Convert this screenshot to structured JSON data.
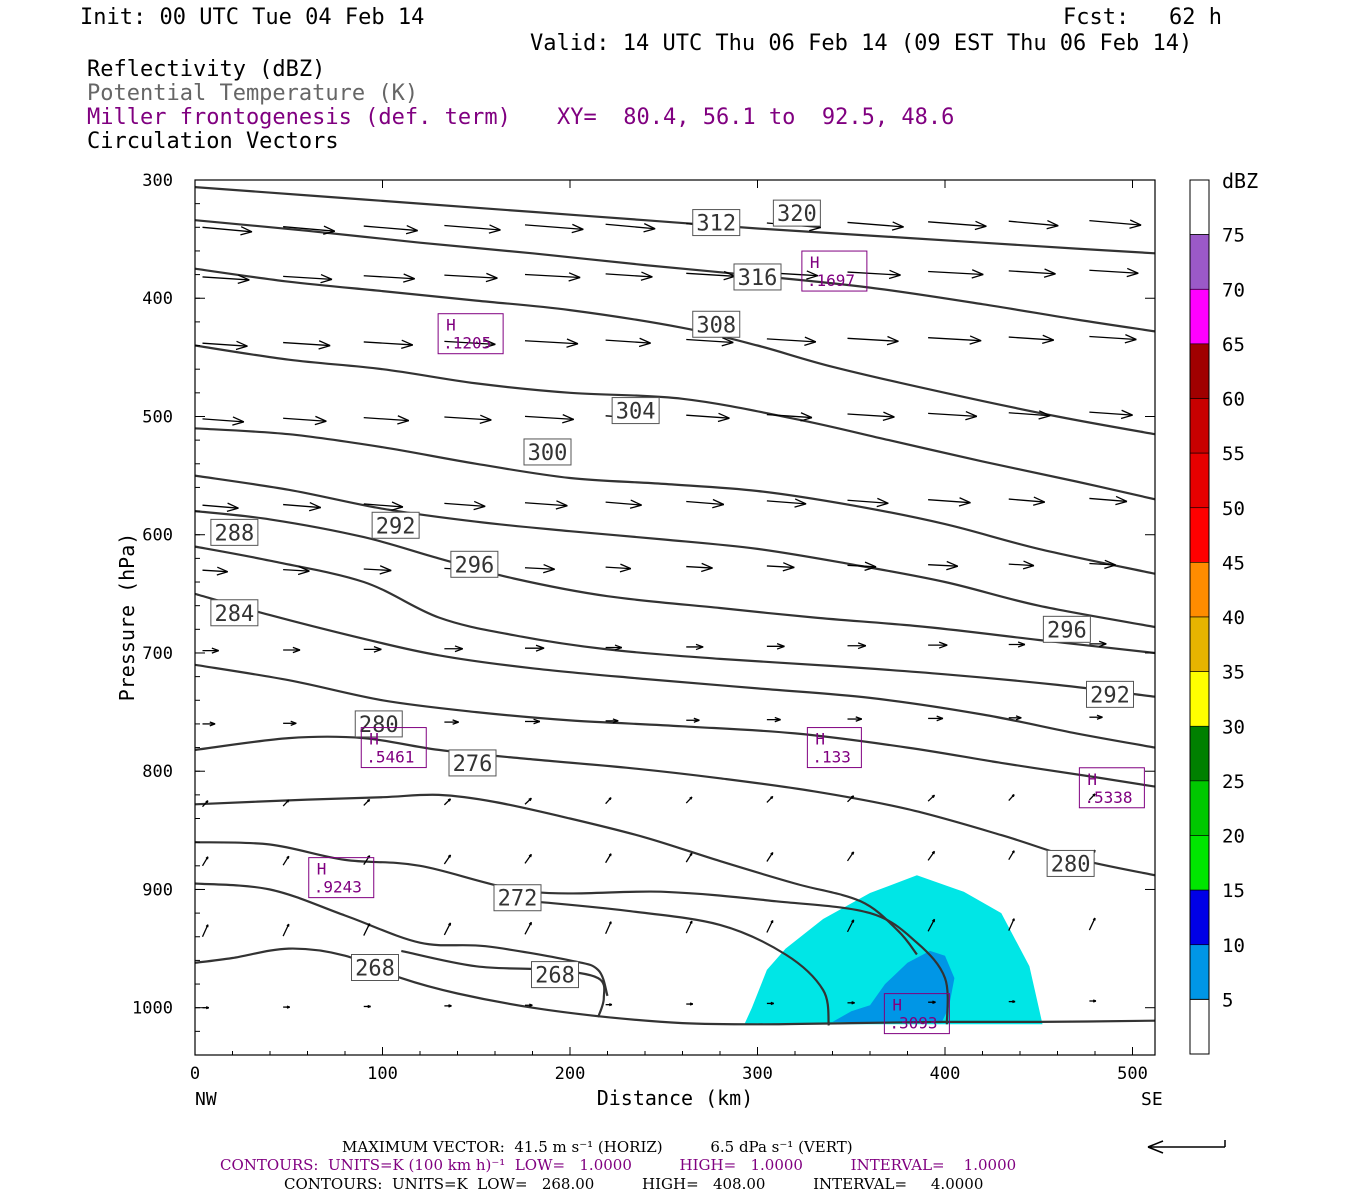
{
  "header": {
    "init": "Init: 00 UTC Tue 04 Feb 14",
    "fcst": "Fcst:   62 h",
    "valid": "Valid: 14 UTC Thu 06 Feb 14 (09 EST Thu 06 Feb 14)",
    "field1": "Reflectivity (dBZ)",
    "field2": "Potential Temperature (K)",
    "field3": "Miller frontogenesis (def. term)",
    "xy": "XY=  80.4, 56.1 to  92.5, 48.6",
    "field4": "Circulation Vectors"
  },
  "footer": {
    "max_vector": "MAXIMUM VECTOR:  41.5 m s⁻¹ (HORIZ)          6.5 dPa s⁻¹ (VERT)",
    "contours1": "CONTOURS:  UNITS=K (100 km h)⁻¹  LOW=   1.0000          HIGH=   1.0000          INTERVAL=    1.0000",
    "contours2": "CONTOURS:  UNITS=K  LOW=   268.00          HIGH=   408.00          INTERVAL=     4.0000"
  },
  "chart_data": {
    "type": "cross-section",
    "xlabel": "Distance (km)",
    "ylabel": "Pressure (hPa)",
    "xlim": [
      0,
      512
    ],
    "ylim": [
      1040,
      300
    ],
    "x_ticks": [
      0,
      100,
      200,
      300,
      400,
      500
    ],
    "y_ticks": [
      300,
      400,
      500,
      600,
      700,
      800,
      900,
      1000
    ],
    "x_end_labels": {
      "left": "NW",
      "right": "SE"
    },
    "colorbar": {
      "title": "dBZ",
      "levels": [
        {
          "label": "5",
          "color": "#00e6e6"
        },
        {
          "label": "10",
          "color": "#0096e6"
        },
        {
          "label": "15",
          "color": "#0000e6"
        },
        {
          "label": "20",
          "color": "#00e600"
        },
        {
          "label": "25",
          "color": "#00c800"
        },
        {
          "label": "30",
          "color": "#008000"
        },
        {
          "label": "35",
          "color": "#ffff00"
        },
        {
          "label": "40",
          "color": "#e6b400"
        },
        {
          "label": "45",
          "color": "#ff8c00"
        },
        {
          "label": "50",
          "color": "#ff0000"
        },
        {
          "label": "55",
          "color": "#e60000"
        },
        {
          "label": "60",
          "color": "#c80000"
        },
        {
          "label": "65",
          "color": "#a00000"
        },
        {
          "label": "70",
          "color": "#ff00ff"
        },
        {
          "label": "75",
          "color": "#9b59c8"
        }
      ]
    },
    "reflectivity": [
      {
        "level": 5,
        "color": "#00e6e6",
        "points": [
          [
            293,
            1014
          ],
          [
            297,
            1000
          ],
          [
            305,
            968
          ],
          [
            315,
            950
          ],
          [
            335,
            925
          ],
          [
            360,
            903
          ],
          [
            385,
            888
          ],
          [
            410,
            902
          ],
          [
            430,
            920
          ],
          [
            445,
            965
          ],
          [
            450,
            1000
          ],
          [
            452,
            1014
          ]
        ]
      },
      {
        "level": 10,
        "color": "#0096e6",
        "points": [
          [
            340,
            1012
          ],
          [
            350,
            1003
          ],
          [
            360,
            998
          ],
          [
            368,
            980
          ],
          [
            380,
            962
          ],
          [
            392,
            952
          ],
          [
            400,
            956
          ],
          [
            405,
            975
          ],
          [
            402,
            1000
          ],
          [
            398,
            1013
          ]
        ]
      }
    ],
    "theta_contours": [
      {
        "value": 268,
        "points": [
          [
            0,
            962
          ],
          [
            20,
            958
          ],
          [
            50,
            950
          ],
          [
            80,
            956
          ],
          [
            110,
            975
          ],
          [
            140,
            988
          ],
          [
            180,
            1000
          ],
          [
            220,
            1008
          ],
          [
            260,
            1013
          ],
          [
            300,
            1014
          ],
          [
            350,
            1013
          ],
          [
            400,
            1012
          ],
          [
            450,
            1012
          ],
          [
            512,
            1011
          ]
        ],
        "labels": [
          {
            "x": 96,
            "p": 966
          }
        ]
      },
      {
        "value": 268,
        "points": [
          [
            110,
            952
          ],
          [
            150,
            965
          ],
          [
            190,
            968
          ],
          [
            215,
            975
          ],
          [
            218,
            992
          ],
          [
            215,
            1008
          ]
        ],
        "labels": [
          {
            "x": 192,
            "p": 972
          }
        ]
      },
      {
        "value": 272,
        "points": [
          [
            0,
            895
          ],
          [
            40,
            900
          ],
          [
            80,
            922
          ],
          [
            120,
            945
          ],
          [
            155,
            948
          ],
          [
            200,
            960
          ],
          [
            215,
            968
          ],
          [
            220,
            990
          ]
        ],
        "labels": [
          {
            "x": 172,
            "p": 907
          }
        ]
      },
      {
        "value": 272,
        "points": [
          [
            180,
            910
          ],
          [
            230,
            918
          ],
          [
            280,
            930
          ],
          [
            315,
            955
          ],
          [
            335,
            985
          ],
          [
            338,
            1015
          ]
        ],
        "labels": []
      },
      {
        "value": 276,
        "points": [
          [
            0,
            860
          ],
          [
            40,
            862
          ],
          [
            80,
            875
          ],
          [
            120,
            880
          ],
          [
            180,
            902
          ],
          [
            250,
            902
          ],
          [
            310,
            910
          ],
          [
            360,
            920
          ],
          [
            385,
            945
          ],
          [
            400,
            975
          ],
          [
            401,
            1014
          ]
        ],
        "labels": [
          {
            "x": 148,
            "p": 793
          }
        ]
      },
      {
        "value": 276,
        "points": [
          [
            0,
            828
          ],
          [
            60,
            824
          ],
          [
            100,
            822
          ],
          [
            130,
            820
          ],
          [
            160,
            826
          ],
          [
            200,
            840
          ],
          [
            240,
            856
          ],
          [
            280,
            876
          ],
          [
            320,
            895
          ],
          [
            355,
            910
          ],
          [
            375,
            935
          ],
          [
            385,
            955
          ]
        ],
        "labels": []
      },
      {
        "value": 280,
        "points": [
          [
            0,
            782
          ],
          [
            50,
            772
          ],
          [
            90,
            772
          ],
          [
            130,
            782
          ],
          [
            180,
            790
          ],
          [
            230,
            797
          ],
          [
            280,
            806
          ],
          [
            330,
            817
          ],
          [
            380,
            832
          ],
          [
            430,
            854
          ],
          [
            470,
            874
          ],
          [
            512,
            888
          ]
        ],
        "labels": [
          {
            "x": 98,
            "p": 760
          },
          {
            "x": 467,
            "p": 878
          }
        ]
      },
      {
        "value": 284,
        "points": [
          [
            0,
            710
          ],
          [
            50,
            723
          ],
          [
            100,
            740
          ],
          [
            150,
            750
          ],
          [
            200,
            757
          ],
          [
            260,
            762
          ],
          [
            320,
            768
          ],
          [
            380,
            780
          ],
          [
            430,
            793
          ],
          [
            480,
            805
          ],
          [
            512,
            813
          ]
        ],
        "labels": [
          {
            "x": 21,
            "p": 666
          }
        ]
      },
      {
        "value": 288,
        "points": [
          [
            0,
            650
          ],
          [
            40,
            668
          ],
          [
            90,
            688
          ],
          [
            130,
            702
          ],
          [
            180,
            713
          ],
          [
            240,
            722
          ],
          [
            300,
            730
          ],
          [
            360,
            738
          ],
          [
            420,
            752
          ],
          [
            470,
            768
          ],
          [
            512,
            780
          ]
        ],
        "labels": [
          {
            "x": 21,
            "p": 598
          }
        ]
      },
      {
        "value": 292,
        "points": [
          [
            0,
            610
          ],
          [
            40,
            622
          ],
          [
            90,
            640
          ],
          [
            130,
            670
          ],
          [
            170,
            685
          ],
          [
            220,
            697
          ],
          [
            280,
            705
          ],
          [
            340,
            711
          ],
          [
            400,
            718
          ],
          [
            460,
            727
          ],
          [
            512,
            737
          ]
        ],
        "labels": [
          {
            "x": 107,
            "p": 592
          },
          {
            "x": 488,
            "p": 735
          }
        ]
      },
      {
        "value": 296,
        "points": [
          [
            0,
            580
          ],
          [
            40,
            587
          ],
          [
            90,
            602
          ],
          [
            130,
            620
          ],
          [
            170,
            637
          ],
          [
            220,
            652
          ],
          [
            280,
            662
          ],
          [
            330,
            670
          ],
          [
            390,
            678
          ],
          [
            450,
            689
          ],
          [
            512,
            700
          ]
        ],
        "labels": [
          {
            "x": 149,
            "p": 625
          },
          {
            "x": 465,
            "p": 680
          }
        ]
      },
      {
        "value": 300,
        "points": [
          [
            0,
            550
          ],
          [
            50,
            562
          ],
          [
            100,
            578
          ],
          [
            150,
            589
          ],
          [
            200,
            597
          ],
          [
            250,
            604
          ],
          [
            300,
            612
          ],
          [
            350,
            625
          ],
          [
            400,
            640
          ],
          [
            450,
            660
          ],
          [
            512,
            678
          ]
        ],
        "labels": [
          {
            "x": 188,
            "p": 530
          }
        ]
      },
      {
        "value": 304,
        "points": [
          [
            0,
            510
          ],
          [
            50,
            515
          ],
          [
            100,
            526
          ],
          [
            150,
            540
          ],
          [
            200,
            552
          ],
          [
            250,
            557
          ],
          [
            300,
            563
          ],
          [
            350,
            575
          ],
          [
            400,
            591
          ],
          [
            450,
            612
          ],
          [
            512,
            633
          ]
        ],
        "labels": [
          {
            "x": 235,
            "p": 495
          }
        ]
      },
      {
        "value": 308,
        "points": [
          [
            0,
            440
          ],
          [
            50,
            452
          ],
          [
            100,
            460
          ],
          [
            150,
            472
          ],
          [
            200,
            480
          ],
          [
            260,
            485
          ],
          [
            320,
            502
          ],
          [
            370,
            520
          ],
          [
            420,
            538
          ],
          [
            470,
            555
          ],
          [
            512,
            570
          ]
        ],
        "labels": [
          {
            "x": 278,
            "p": 422
          }
        ]
      },
      {
        "value": 312,
        "points": [
          [
            0,
            375
          ],
          [
            50,
            386
          ],
          [
            100,
            394
          ],
          [
            150,
            402
          ],
          [
            200,
            410
          ],
          [
            260,
            425
          ],
          [
            300,
            440
          ],
          [
            340,
            458
          ],
          [
            400,
            480
          ],
          [
            460,
            500
          ],
          [
            512,
            515
          ]
        ],
        "labels": [
          {
            "x": 278,
            "p": 336
          }
        ]
      },
      {
        "value": 316,
        "points": [
          [
            0,
            334
          ],
          [
            60,
            343
          ],
          [
            120,
            353
          ],
          [
            180,
            362
          ],
          [
            240,
            372
          ],
          [
            300,
            381
          ],
          [
            360,
            391
          ],
          [
            420,
            405
          ],
          [
            470,
            418
          ],
          [
            512,
            428
          ]
        ],
        "labels": [
          {
            "x": 300,
            "p": 382
          }
        ]
      },
      {
        "value": 320,
        "points": [
          [
            0,
            306
          ],
          [
            60,
            313
          ],
          [
            120,
            320
          ],
          [
            180,
            327
          ],
          [
            240,
            334
          ],
          [
            300,
            341
          ],
          [
            360,
            347
          ],
          [
            420,
            353
          ],
          [
            470,
            358
          ],
          [
            512,
            362
          ]
        ],
        "labels": [
          {
            "x": 321,
            "p": 328
          }
        ]
      }
    ],
    "frontogenesis_maxima": [
      {
        "label": "H",
        "value": ".1697",
        "x": 341,
        "p": 377
      },
      {
        "label": "H",
        "value": ".1205",
        "x": 147,
        "p": 430
      },
      {
        "label": "H",
        "value": ".5461",
        "x": 106,
        "p": 780
      },
      {
        "label": "H",
        "value": ".133",
        "x": 341,
        "p": 780
      },
      {
        "label": "H",
        "value": ".5338",
        "x": 489,
        "p": 814
      },
      {
        "label": "H",
        "value": ".9243",
        "x": 78,
        "p": 890
      },
      {
        "label": "H",
        "value": ".3093",
        "x": 385,
        "p": 1005
      }
    ],
    "max_vector": {
      "horiz": 41.5,
      "horiz_units": "m s-1",
      "vert": 6.5,
      "vert_units": "dPa s-1"
    }
  }
}
